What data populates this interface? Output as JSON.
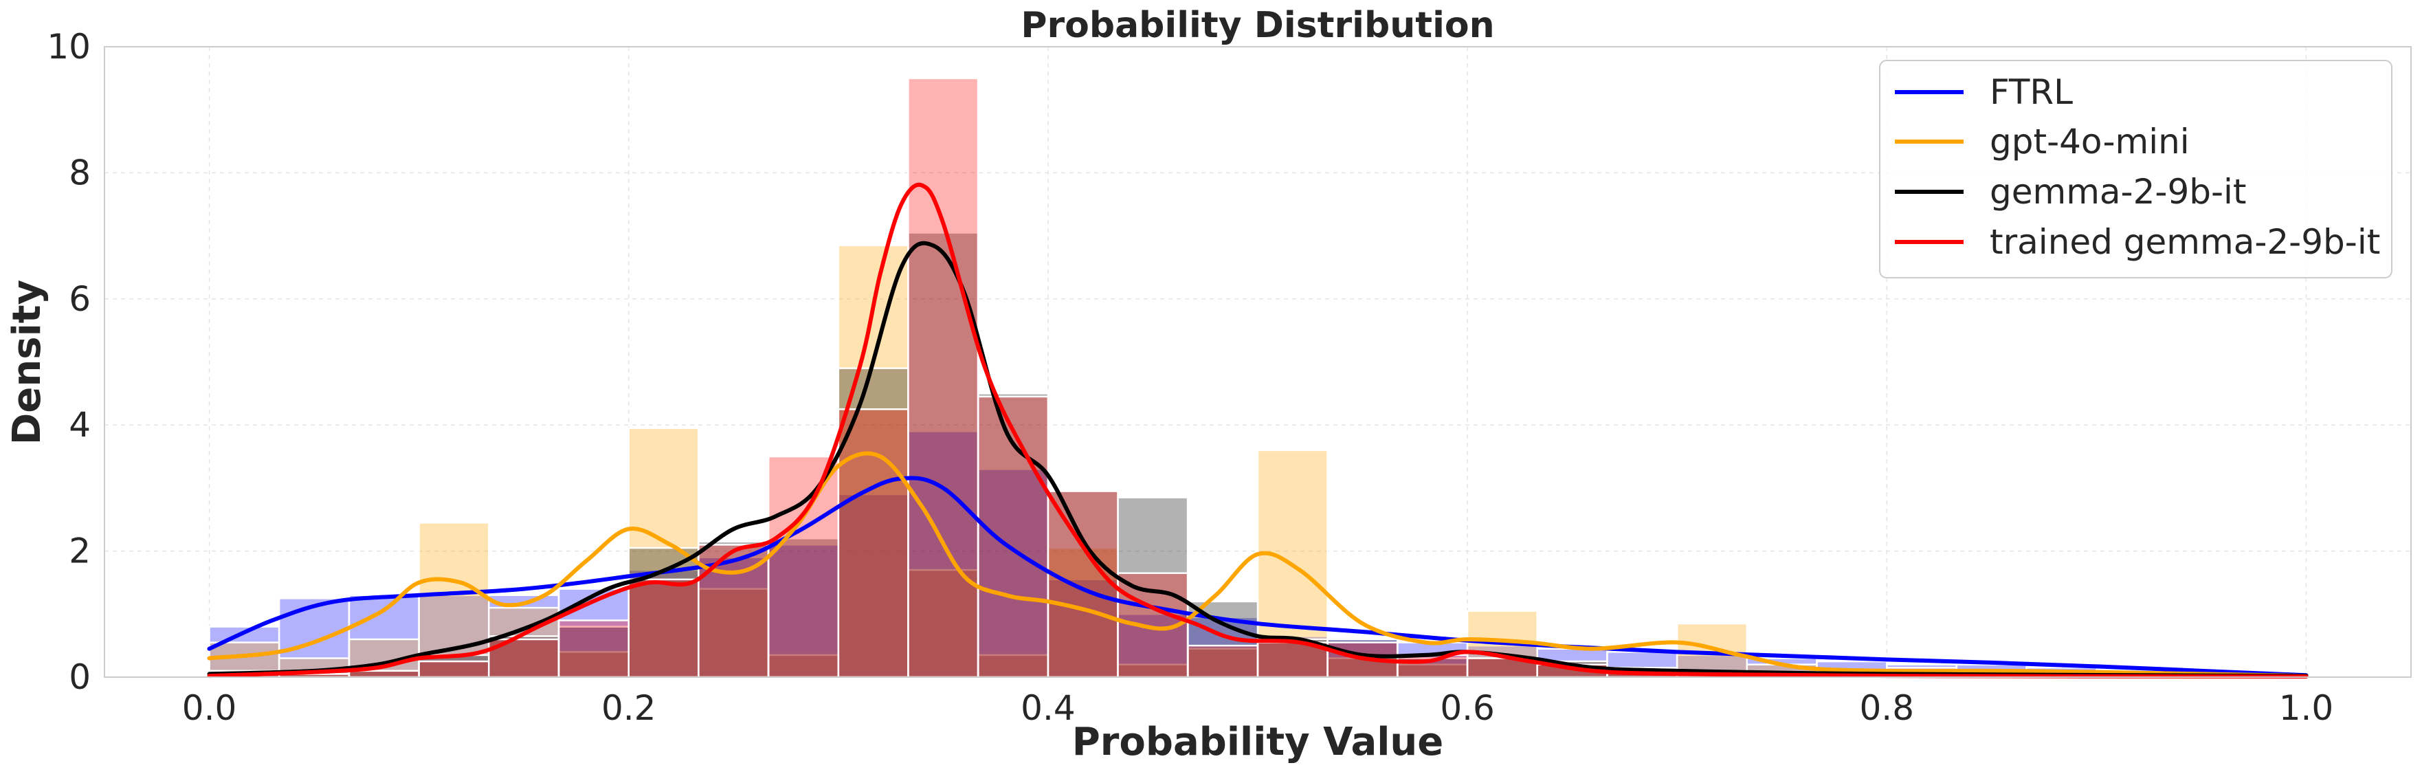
{
  "chart_data": {
    "type": "histogram-kde",
    "title": "Probability Distribution",
    "xlabel": "Probability Value",
    "ylabel": "Density",
    "xlim": [
      -0.05,
      1.05
    ],
    "ylim": [
      0,
      10
    ],
    "xticks": [
      0.0,
      0.2,
      0.4,
      0.6,
      0.8,
      1.0
    ],
    "xtick_labels": [
      "0.0",
      "0.2",
      "0.4",
      "0.6",
      "0.8",
      "1.0"
    ],
    "yticks": [
      0,
      2,
      4,
      6,
      8,
      10
    ],
    "ytick_labels": [
      "0",
      "2",
      "4",
      "6",
      "8",
      "10"
    ],
    "grid": true,
    "legend_position": "top-right",
    "bin_width": 0.0333,
    "series": [
      {
        "name": "FTRL",
        "color": "#0000ff",
        "hist": {
          "starts": [
            0.0,
            0.0333,
            0.0667,
            0.1,
            0.1333,
            0.1667,
            0.2,
            0.2333,
            0.2667,
            0.3,
            0.3333,
            0.3667,
            0.4,
            0.4333,
            0.4667,
            0.5,
            0.5333,
            0.5667,
            0.6,
            0.6333,
            0.6667,
            0.7,
            0.7333,
            0.7667,
            0.8,
            0.8333,
            0.8667,
            0.9,
            0.9333,
            0.9667
          ],
          "heights": [
            0.8,
            1.25,
            1.3,
            1.3,
            1.3,
            1.4,
            1.7,
            1.9,
            2.1,
            2.9,
            3.9,
            3.3,
            1.55,
            1.0,
            0.95,
            0.65,
            0.6,
            0.55,
            0.5,
            0.45,
            0.4,
            0.35,
            0.3,
            0.25,
            0.2,
            0.2,
            0.15,
            0.1,
            0.1,
            0.05
          ]
        },
        "kde": {
          "x": [
            0.0,
            0.03,
            0.06,
            0.1,
            0.15,
            0.2,
            0.25,
            0.28,
            0.31,
            0.33,
            0.35,
            0.38,
            0.42,
            0.46,
            0.5,
            0.55,
            0.6,
            0.65,
            0.7,
            0.75,
            0.8,
            0.85,
            0.9,
            0.95,
            1.0
          ],
          "y": [
            0.45,
            0.9,
            1.2,
            1.3,
            1.4,
            1.6,
            1.85,
            2.3,
            2.9,
            3.15,
            3.0,
            2.1,
            1.35,
            1.05,
            0.85,
            0.72,
            0.58,
            0.48,
            0.4,
            0.34,
            0.28,
            0.23,
            0.17,
            0.1,
            0.03
          ]
        }
      },
      {
        "name": "gpt-4o-mini",
        "color": "#ffa500",
        "hist": {
          "starts": [
            0.0,
            0.0333,
            0.0667,
            0.1,
            0.1333,
            0.1667,
            0.2,
            0.2333,
            0.2667,
            0.3,
            0.3333,
            0.3667,
            0.4,
            0.4333,
            0.4667,
            0.5,
            0.5333,
            0.5667,
            0.6,
            0.6333,
            0.6667,
            0.7,
            0.7333,
            0.7667,
            0.8,
            0.8333,
            0.8667,
            0.9,
            0.9333,
            0.9667
          ],
          "heights": [
            0.55,
            0.3,
            0.6,
            2.45,
            1.1,
            0.4,
            3.95,
            1.4,
            0.35,
            6.85,
            1.7,
            0.35,
            2.05,
            0.2,
            0.45,
            3.6,
            0.3,
            0.2,
            1.05,
            0.25,
            0.15,
            0.85,
            0.2,
            0.1,
            0.15,
            0.05,
            0.05,
            0.05,
            0.05,
            0.05
          ]
        },
        "kde": {
          "x": [
            0.0,
            0.04,
            0.08,
            0.1,
            0.12,
            0.14,
            0.16,
            0.18,
            0.2,
            0.22,
            0.24,
            0.26,
            0.28,
            0.3,
            0.32,
            0.34,
            0.36,
            0.38,
            0.4,
            0.42,
            0.44,
            0.46,
            0.48,
            0.5,
            0.52,
            0.55,
            0.58,
            0.6,
            0.63,
            0.66,
            0.7,
            0.73,
            0.76,
            0.8,
            0.85,
            0.9,
            1.0
          ],
          "y": [
            0.3,
            0.45,
            1.0,
            1.5,
            1.5,
            1.15,
            1.3,
            1.85,
            2.35,
            2.1,
            1.7,
            1.75,
            2.4,
            3.35,
            3.5,
            2.7,
            1.6,
            1.3,
            1.2,
            1.05,
            0.85,
            0.8,
            1.3,
            1.95,
            1.7,
            0.85,
            0.55,
            0.6,
            0.55,
            0.45,
            0.55,
            0.35,
            0.15,
            0.1,
            0.1,
            0.08,
            0.02
          ]
        }
      },
      {
        "name": "gemma-2-9b-it",
        "color": "#000000",
        "hist": {
          "starts": [
            0.0,
            0.0333,
            0.0667,
            0.1,
            0.1333,
            0.1667,
            0.2,
            0.2333,
            0.2667,
            0.3,
            0.3333,
            0.3667,
            0.4,
            0.4333,
            0.4667,
            0.5,
            0.5333,
            0.5667,
            0.6,
            0.6333,
            0.6667,
            0.7,
            0.7333,
            0.7667,
            0.8
          ],
          "heights": [
            0.1,
            0.05,
            0.1,
            0.35,
            0.65,
            0.8,
            2.05,
            2.15,
            2.2,
            4.9,
            7.05,
            4.5,
            2.95,
            2.85,
            1.2,
            0.6,
            0.6,
            0.3,
            0.3,
            0.25,
            0.1,
            0.1,
            0.05,
            0.05,
            0.05
          ]
        },
        "kde": {
          "x": [
            0.0,
            0.05,
            0.08,
            0.1,
            0.13,
            0.16,
            0.19,
            0.21,
            0.23,
            0.25,
            0.27,
            0.29,
            0.31,
            0.33,
            0.345,
            0.36,
            0.38,
            0.4,
            0.42,
            0.44,
            0.46,
            0.48,
            0.5,
            0.52,
            0.55,
            0.58,
            0.6,
            0.63,
            0.66,
            0.7,
            0.8,
            1.0
          ],
          "y": [
            0.05,
            0.1,
            0.2,
            0.35,
            0.55,
            0.9,
            1.4,
            1.6,
            1.9,
            2.35,
            2.55,
            3.0,
            4.3,
            6.5,
            6.85,
            6.1,
            3.9,
            3.2,
            2.0,
            1.45,
            1.3,
            0.9,
            0.65,
            0.6,
            0.35,
            0.35,
            0.4,
            0.3,
            0.15,
            0.1,
            0.05,
            0.02
          ]
        }
      },
      {
        "name": "trained gemma-2-9b-it",
        "color": "#ff0000",
        "hist": {
          "starts": [
            0.0,
            0.0333,
            0.0667,
            0.1,
            0.1333,
            0.1667,
            0.2,
            0.2333,
            0.2667,
            0.3,
            0.3333,
            0.3667,
            0.4,
            0.4333,
            0.4667,
            0.5,
            0.5333,
            0.5667,
            0.6,
            0.6333,
            0.6667,
            0.7,
            0.7333,
            0.7667,
            0.8
          ],
          "heights": [
            0.05,
            0.05,
            0.1,
            0.25,
            0.6,
            0.9,
            1.55,
            2.1,
            3.5,
            4.25,
            9.5,
            4.45,
            2.95,
            1.65,
            0.5,
            0.55,
            0.55,
            0.35,
            0.3,
            0.2,
            0.1,
            0.05,
            0.05,
            0.05,
            0.05
          ]
        },
        "kde": {
          "x": [
            0.0,
            0.05,
            0.08,
            0.1,
            0.13,
            0.16,
            0.19,
            0.21,
            0.23,
            0.25,
            0.27,
            0.29,
            0.31,
            0.32,
            0.33,
            0.34,
            0.35,
            0.37,
            0.39,
            0.41,
            0.43,
            0.45,
            0.47,
            0.49,
            0.52,
            0.55,
            0.58,
            0.6,
            0.63,
            0.66,
            0.7,
            0.8,
            1.0
          ],
          "y": [
            0.02,
            0.08,
            0.15,
            0.3,
            0.4,
            0.85,
            1.3,
            1.5,
            1.5,
            2.0,
            2.2,
            2.95,
            4.9,
            6.4,
            7.5,
            7.8,
            7.2,
            4.9,
            3.5,
            2.4,
            1.5,
            1.1,
            0.85,
            0.6,
            0.55,
            0.3,
            0.25,
            0.4,
            0.25,
            0.1,
            0.05,
            0.02,
            0.01
          ]
        }
      }
    ]
  }
}
